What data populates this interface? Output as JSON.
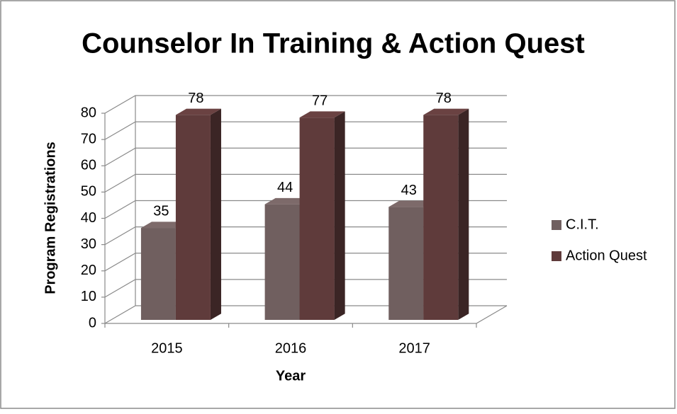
{
  "chart_data": {
    "type": "bar3d",
    "title": "Counselor In Training & Action Quest",
    "categories": [
      "2015",
      "2016",
      "2017"
    ],
    "series": [
      {
        "name": "C.I.T.",
        "color": "#705f5f",
        "values": [
          35,
          44,
          43
        ]
      },
      {
        "name": "Action Quest",
        "color": "#5f3b3b",
        "values": [
          78,
          77,
          78
        ]
      }
    ],
    "ylim": [
      0,
      80
    ],
    "yticks": [
      0,
      10,
      20,
      30,
      40,
      50,
      60,
      70,
      80
    ],
    "ylabel": "Program Registrations",
    "xlabel": "Year",
    "grid": true,
    "legend": "right"
  }
}
